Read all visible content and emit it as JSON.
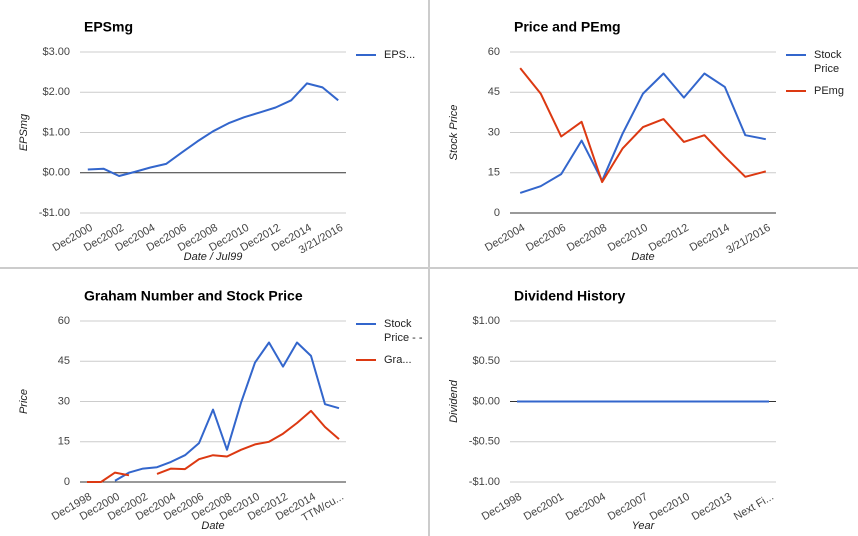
{
  "chart_data": [
    {
      "type": "line",
      "title": "EPSmg",
      "y_label": "EPSmg",
      "x_label": "Date / Jul99",
      "categories": [
        "Dec2000",
        null,
        "Dec2002",
        null,
        "Dec2004",
        null,
        "Dec2006",
        null,
        "Dec2008",
        null,
        "Dec2010",
        null,
        "Dec2012",
        null,
        "Dec2014",
        null,
        "3/21/2016"
      ],
      "series": [
        {
          "name": "EPS...",
          "color": "#3366cc",
          "values": [
            0.08,
            0.1,
            -0.08,
            0.02,
            0.13,
            0.22,
            0.5,
            0.78,
            1.03,
            1.23,
            1.38,
            1.5,
            1.62,
            1.8,
            2.22,
            2.12,
            1.8
          ]
        }
      ],
      "ylim": [
        -1,
        3
      ],
      "yticks": [
        {
          "value": 3,
          "label": "$3.00"
        },
        {
          "value": 2,
          "label": "$2.00"
        },
        {
          "value": 1,
          "label": "$1.00"
        },
        {
          "value": 0,
          "label": "$0.00"
        },
        {
          "value": -1,
          "label": "-$1.00"
        }
      ],
      "grid": true
    },
    {
      "type": "line",
      "title": "Price and PEmg",
      "y_label": "Stock Price",
      "x_label": "Date",
      "categories": [
        "Dec2004",
        null,
        "Dec2006",
        null,
        "Dec2008",
        null,
        "Dec2010",
        null,
        "Dec2012",
        null,
        "Dec2014",
        null,
        "3/21/2016"
      ],
      "series": [
        {
          "name": "Stock Price",
          "color": "#3366cc",
          "values": [
            7.5,
            10,
            14.5,
            27,
            12,
            29.5,
            44.5,
            52,
            43,
            52,
            47,
            29,
            27.5
          ]
        },
        {
          "name": "PEmg",
          "color": "#dc3912",
          "values": [
            54,
            44.5,
            28.5,
            34,
            11.5,
            24,
            32,
            35,
            26.5,
            29,
            21,
            13.5,
            15.5
          ]
        }
      ],
      "ylim": [
        0,
        60
      ],
      "yticks": [
        60,
        45,
        30,
        15,
        0
      ],
      "grid": true
    },
    {
      "type": "line",
      "title": "Graham Number and Stock Price",
      "y_label": "Price",
      "x_label": "Date",
      "categories": [
        "Dec1998",
        null,
        "Dec2000",
        null,
        "Dec2002",
        null,
        "Dec2004",
        null,
        "Dec2006",
        null,
        "Dec2008",
        null,
        "Dec2010",
        null,
        "Dec2012",
        null,
        "Dec2014",
        null,
        "TTM/cu..."
      ],
      "series": [
        {
          "name": "Stock Price - -",
          "color": "#3366cc",
          "values": [
            null,
            null,
            0.5,
            3.5,
            5,
            5.5,
            7.5,
            10,
            14.5,
            27,
            12,
            29.5,
            44.5,
            52,
            43,
            52,
            47,
            29,
            27.5
          ]
        },
        {
          "name": "Gra...",
          "color": "#dc3912",
          "values": [
            0,
            0,
            3.5,
            2.5,
            null,
            3,
            5,
            4.8,
            8.5,
            10,
            9.5,
            12,
            14,
            15,
            18,
            22,
            26.5,
            20.5,
            16
          ]
        }
      ],
      "ylim": [
        0,
        60
      ],
      "yticks": [
        60,
        45,
        30,
        15,
        0
      ],
      "grid": true
    },
    {
      "type": "line",
      "title": "Dividend History",
      "y_label": "Dividend",
      "x_label": "Year",
      "categories": [
        "Dec1998",
        null,
        null,
        "Dec2001",
        null,
        null,
        "Dec2004",
        null,
        null,
        "Dec2007",
        null,
        null,
        "Dec2010",
        null,
        null,
        "Dec2013",
        null,
        null,
        "Next Fi..."
      ],
      "series": [
        {
          "color": "#3366cc",
          "values": [
            0,
            0,
            0,
            0,
            0,
            0,
            0,
            0,
            0,
            0,
            0,
            0,
            0,
            0,
            0,
            0,
            0,
            0,
            0
          ]
        }
      ],
      "ylim": [
        -1,
        1
      ],
      "yticks": [
        {
          "value": 1,
          "label": "$1.00"
        },
        {
          "value": 0.5,
          "label": "$0.50"
        },
        {
          "value": 0,
          "label": "$0.00"
        },
        {
          "value": -0.5,
          "label": "-$0.50"
        },
        {
          "value": -1,
          "label": "-$1.00"
        }
      ],
      "grid": true
    }
  ]
}
